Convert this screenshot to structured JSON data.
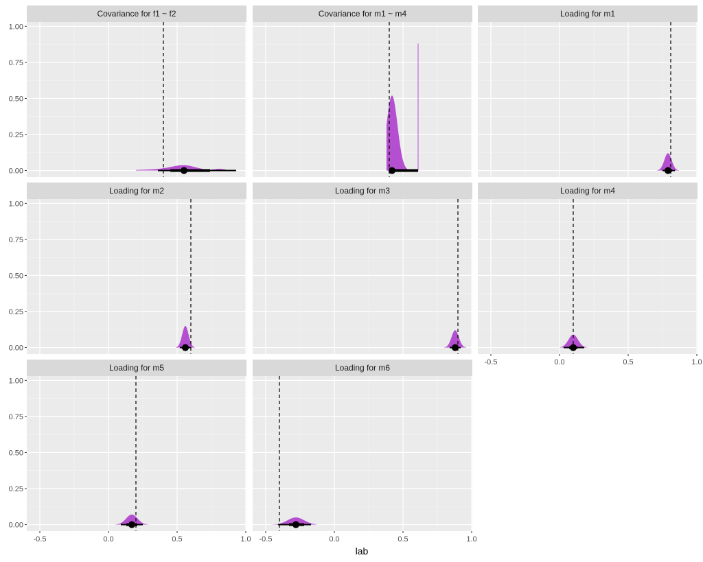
{
  "chart_data": {
    "type": "area",
    "subtype": "faceted density (halfeye) with point-interval and reference line",
    "xlabel": "lab",
    "ylabel": "",
    "xlim": [
      -0.6,
      1.0
    ],
    "ylim": [
      0.0,
      1.0
    ],
    "x_ticks": [
      "-0.5",
      "0.0",
      "0.5",
      "1.0"
    ],
    "y_ticks": [
      "0.00",
      "0.25",
      "0.50",
      "0.75",
      "1.00"
    ],
    "grid": true,
    "legend": "none",
    "fill_color": "#b44fd0",
    "strip_color": "#d9d9d9",
    "panel_bg": "#ebebeb",
    "panels": [
      {
        "title": "Covariance for f1 ~ f2",
        "ref_line": 0.4,
        "point": 0.55,
        "interval_inner": [
          0.45,
          0.74
        ],
        "interval_outer": [
          0.36,
          0.93
        ],
        "density_peak": 0.035,
        "spread": [
          0.2,
          0.95
        ]
      },
      {
        "title": "Covariance for m1 ~ m4",
        "ref_line": 0.4,
        "point": 0.42,
        "interval_inner": [
          0.41,
          0.61
        ],
        "interval_outer": [
          0.4,
          0.61
        ],
        "density_peak": 0.52,
        "spike": {
          "x": 0.61,
          "height": 0.88
        },
        "spread": [
          0.38,
          0.62
        ]
      },
      {
        "title": "Loading for m1",
        "ref_line": 0.81,
        "point": 0.79,
        "interval_inner": [
          0.77,
          0.82
        ],
        "interval_outer": [
          0.75,
          0.84
        ],
        "density_peak": 0.12,
        "spread": [
          0.71,
          0.87
        ]
      },
      {
        "title": "Loading for m2",
        "ref_line": 0.6,
        "point": 0.56,
        "interval_inner": [
          0.54,
          0.58
        ],
        "interval_outer": [
          0.52,
          0.6
        ],
        "density_peak": 0.15,
        "spread": [
          0.49,
          0.63
        ]
      },
      {
        "title": "Loading for m3",
        "ref_line": 0.9,
        "point": 0.88,
        "interval_inner": [
          0.86,
          0.9
        ],
        "interval_outer": [
          0.84,
          0.92
        ],
        "density_peak": 0.12,
        "spread": [
          0.8,
          0.96
        ]
      },
      {
        "title": "Loading for m4",
        "ref_line": 0.1,
        "point": 0.1,
        "interval_inner": [
          0.07,
          0.13
        ],
        "interval_outer": [
          0.03,
          0.18
        ],
        "density_peak": 0.09,
        "spread": [
          0.0,
          0.21
        ]
      },
      {
        "title": "Loading for m5",
        "ref_line": 0.2,
        "point": 0.17,
        "interval_inner": [
          0.13,
          0.21
        ],
        "interval_outer": [
          0.09,
          0.25
        ],
        "density_peak": 0.07,
        "spread": [
          0.05,
          0.3
        ]
      },
      {
        "title": "Loading for m6",
        "ref_line": -0.4,
        "point": -0.28,
        "interval_inner": [
          -0.33,
          -0.22
        ],
        "interval_outer": [
          -0.41,
          -0.17
        ],
        "density_peak": 0.05,
        "spread": [
          -0.49,
          -0.13
        ]
      }
    ]
  }
}
